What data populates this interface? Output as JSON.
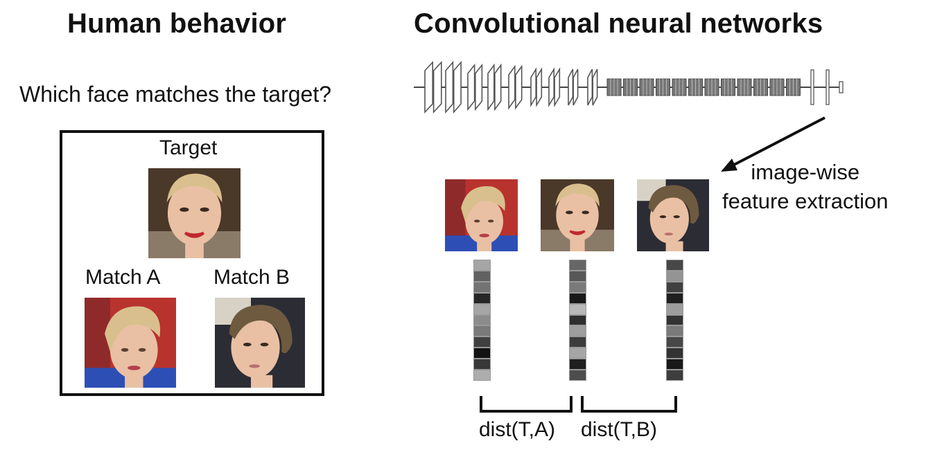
{
  "left_panel": {
    "title": "Human behavior",
    "question": "Which face matches the target?",
    "target_label": "Target",
    "match_a_label": "Match A",
    "match_b_label": "Match B"
  },
  "right_panel": {
    "title": "Convolutional neural networks",
    "annotation_line1": "image-wise",
    "annotation_line2": "feature extraction",
    "dist_a_label": "dist(T,A)",
    "dist_b_label": "dist(T,B)"
  },
  "feature_vectors": {
    "match_a": [
      0.35,
      0.62,
      0.55,
      0.85,
      0.35,
      0.45,
      0.52,
      0.75,
      0.93,
      0.78,
      0.32
    ],
    "target": [
      0.6,
      0.66,
      0.52,
      0.9,
      0.28,
      0.82,
      0.38,
      0.76,
      0.35,
      0.88,
      0.7
    ],
    "match_b": [
      0.72,
      0.42,
      0.75,
      0.88,
      0.38,
      0.8,
      0.52,
      0.72,
      0.8,
      0.9,
      0.76
    ]
  },
  "colors": {
    "hair_blonde": "#d9bf8e",
    "hair_brown": "#6e5a3f",
    "skin": "#e9c0a4",
    "lips": "#c0282f",
    "red_background": "#b8332e"
  }
}
